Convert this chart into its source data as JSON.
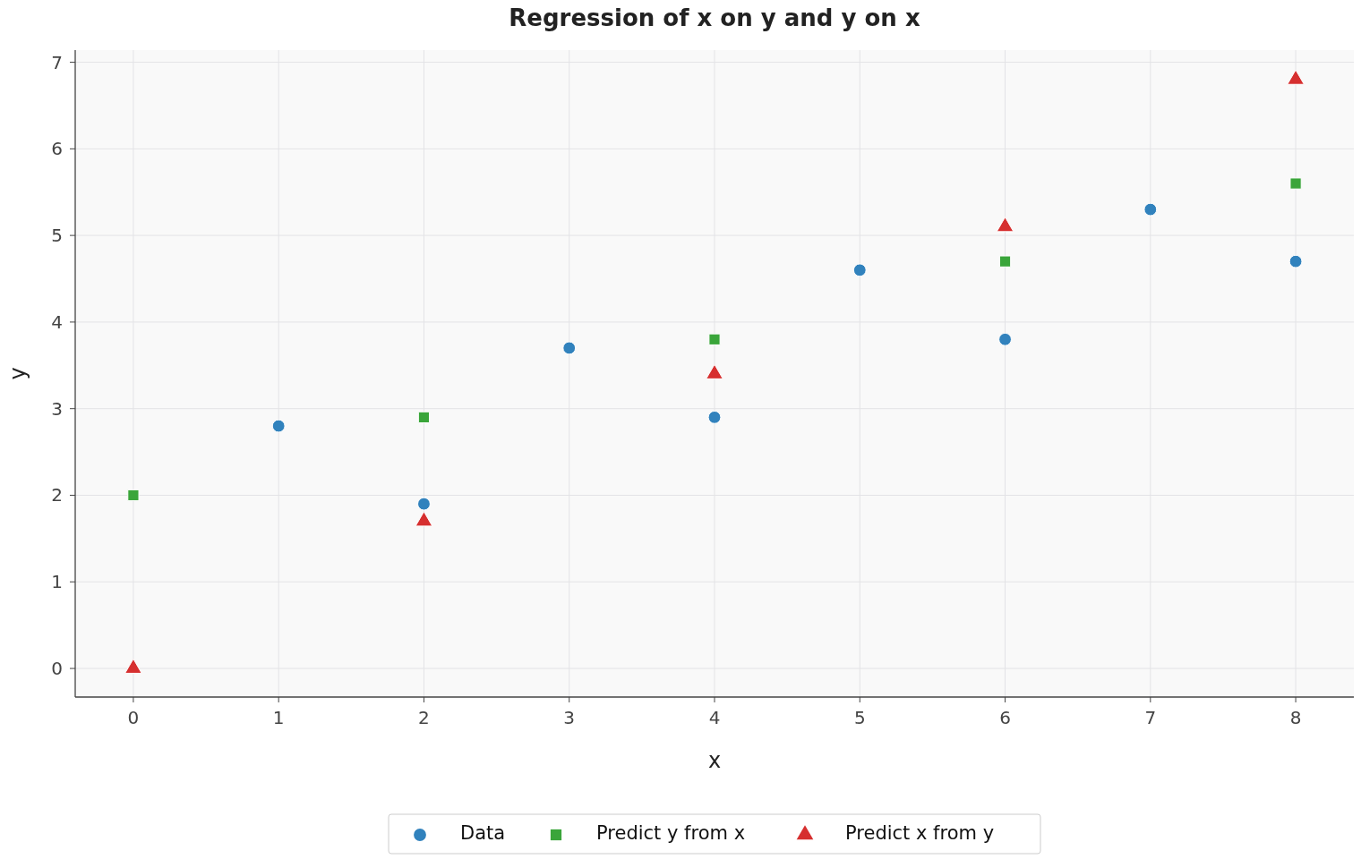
{
  "chart_data": {
    "type": "scatter",
    "title": "Regression of x on y and y on x",
    "xlabel": "x",
    "ylabel": "y",
    "xlim": [
      -0.4,
      8.4
    ],
    "xticks": [
      0,
      1,
      2,
      3,
      4,
      5,
      6,
      7,
      8
    ],
    "ylim": [
      -0.33,
      7.14
    ],
    "yticks": [
      0,
      1,
      2,
      3,
      4,
      5,
      6,
      7
    ],
    "grid": true,
    "legend": "bottom",
    "series": [
      {
        "name": "Data",
        "color": "#3182bd",
        "marker": "circle",
        "x": [
          1,
          2,
          3,
          4,
          5,
          6,
          7,
          8
        ],
        "values": [
          2.8,
          1.9,
          3.7,
          2.9,
          4.6,
          3.8,
          5.3,
          4.7
        ]
      },
      {
        "name": "Predict y from x",
        "color": "#3aa53a",
        "marker": "square",
        "x": [
          0,
          2,
          4,
          6,
          8
        ],
        "values": [
          2.0,
          2.9,
          3.8,
          4.7,
          5.6
        ]
      },
      {
        "name": "Predict x from y",
        "color": "#d62f2f",
        "marker": "triangle",
        "x": [
          0,
          2,
          4,
          6,
          8
        ],
        "values": [
          0,
          1.7,
          3.4,
          5.1,
          6.8
        ]
      }
    ]
  }
}
